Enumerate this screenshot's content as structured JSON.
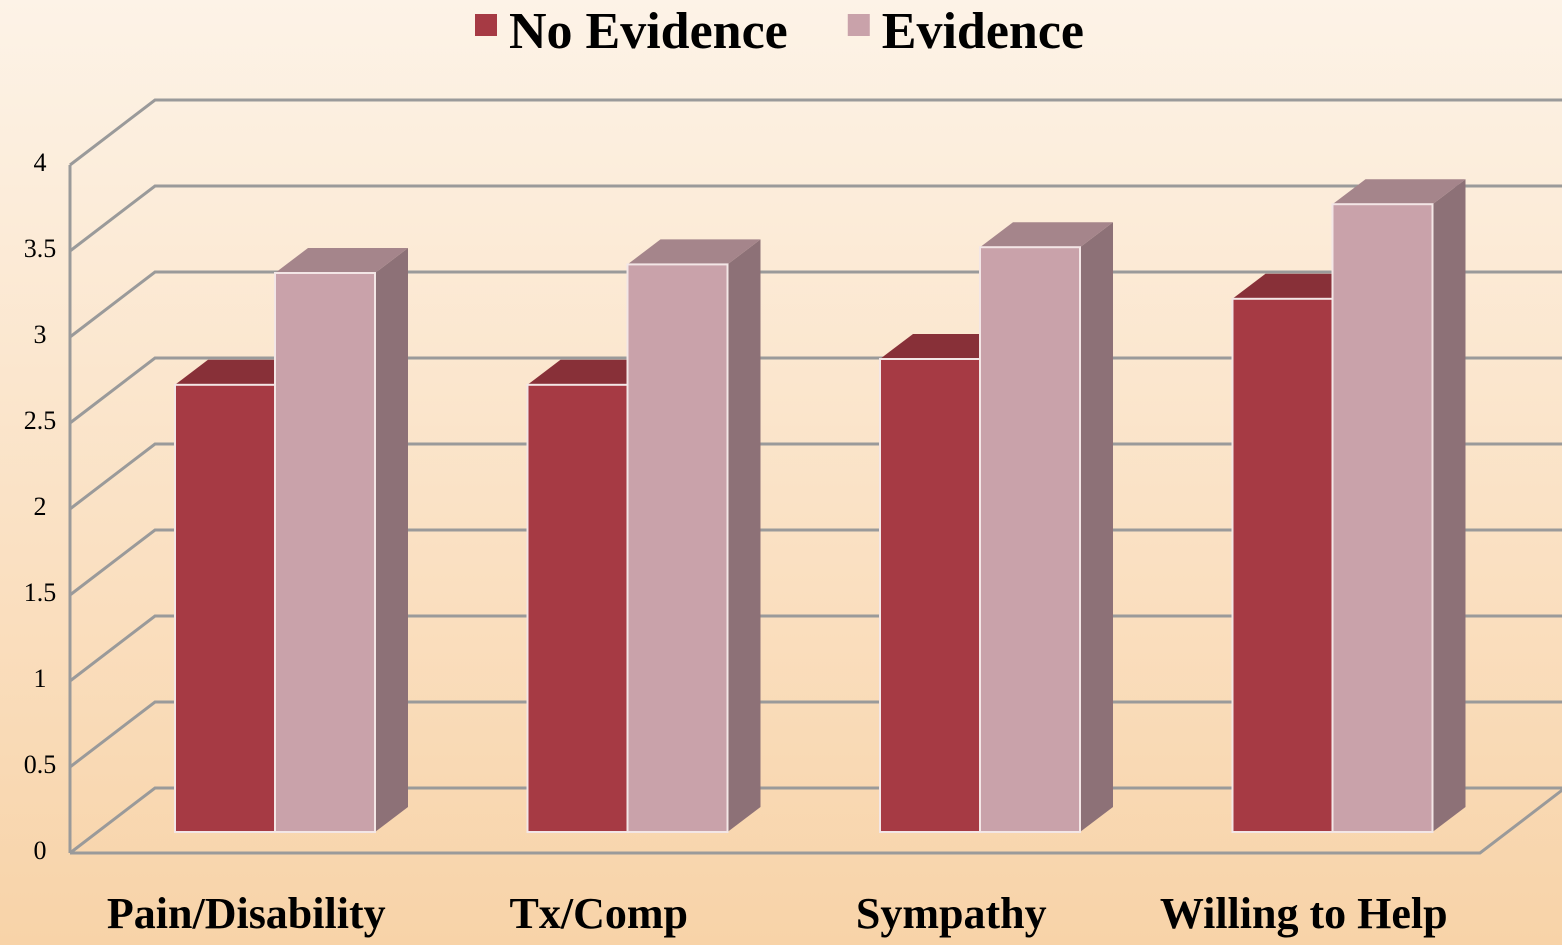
{
  "chart_data": {
    "type": "bar3d",
    "categories": [
      "Pain/Disability",
      "Tx/Comp",
      "Sympathy",
      "Willing to Help"
    ],
    "series": [
      {
        "name": "No Evidence",
        "color": "#a63a44",
        "values": [
          2.6,
          2.6,
          2.75,
          3.1
        ]
      },
      {
        "name": "Evidence",
        "color": "#c9a2aa",
        "values": [
          3.25,
          3.3,
          3.4,
          3.65
        ]
      }
    ],
    "ylim": [
      0,
      4
    ],
    "yticks": [
      0,
      0.5,
      1,
      1.5,
      2,
      2.5,
      3,
      3.5,
      4
    ],
    "grid": true,
    "legend": "top"
  }
}
